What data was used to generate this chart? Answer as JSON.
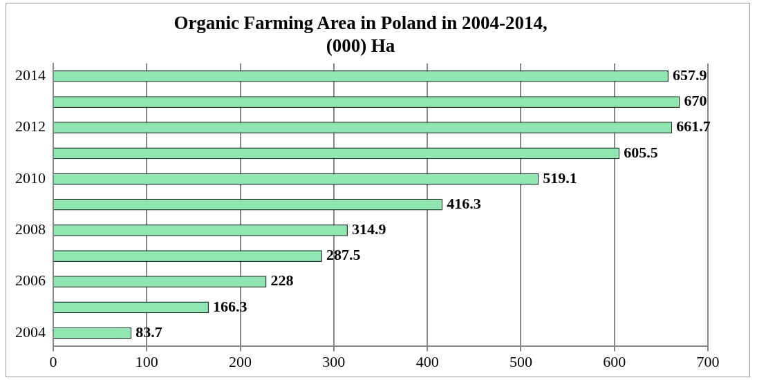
{
  "chart_data": {
    "type": "bar",
    "orientation": "horizontal",
    "title": "Organic Farming Area in Poland in 2004-2014, (000) Ha",
    "categories": [
      "2014",
      null,
      "2012",
      null,
      "2010",
      null,
      "2008",
      null,
      "2006",
      null,
      "2004"
    ],
    "values": [
      657.9,
      670,
      661.7,
      605.5,
      519.1,
      416.3,
      314.9,
      287.5,
      228,
      166.3,
      83.7
    ],
    "color": "#8fe6b0",
    "data_labels": true,
    "xlim": [
      0,
      700
    ],
    "xticks": [
      0,
      100,
      200,
      300,
      400,
      500,
      600,
      700
    ],
    "grid": "x",
    "legend": false
  }
}
